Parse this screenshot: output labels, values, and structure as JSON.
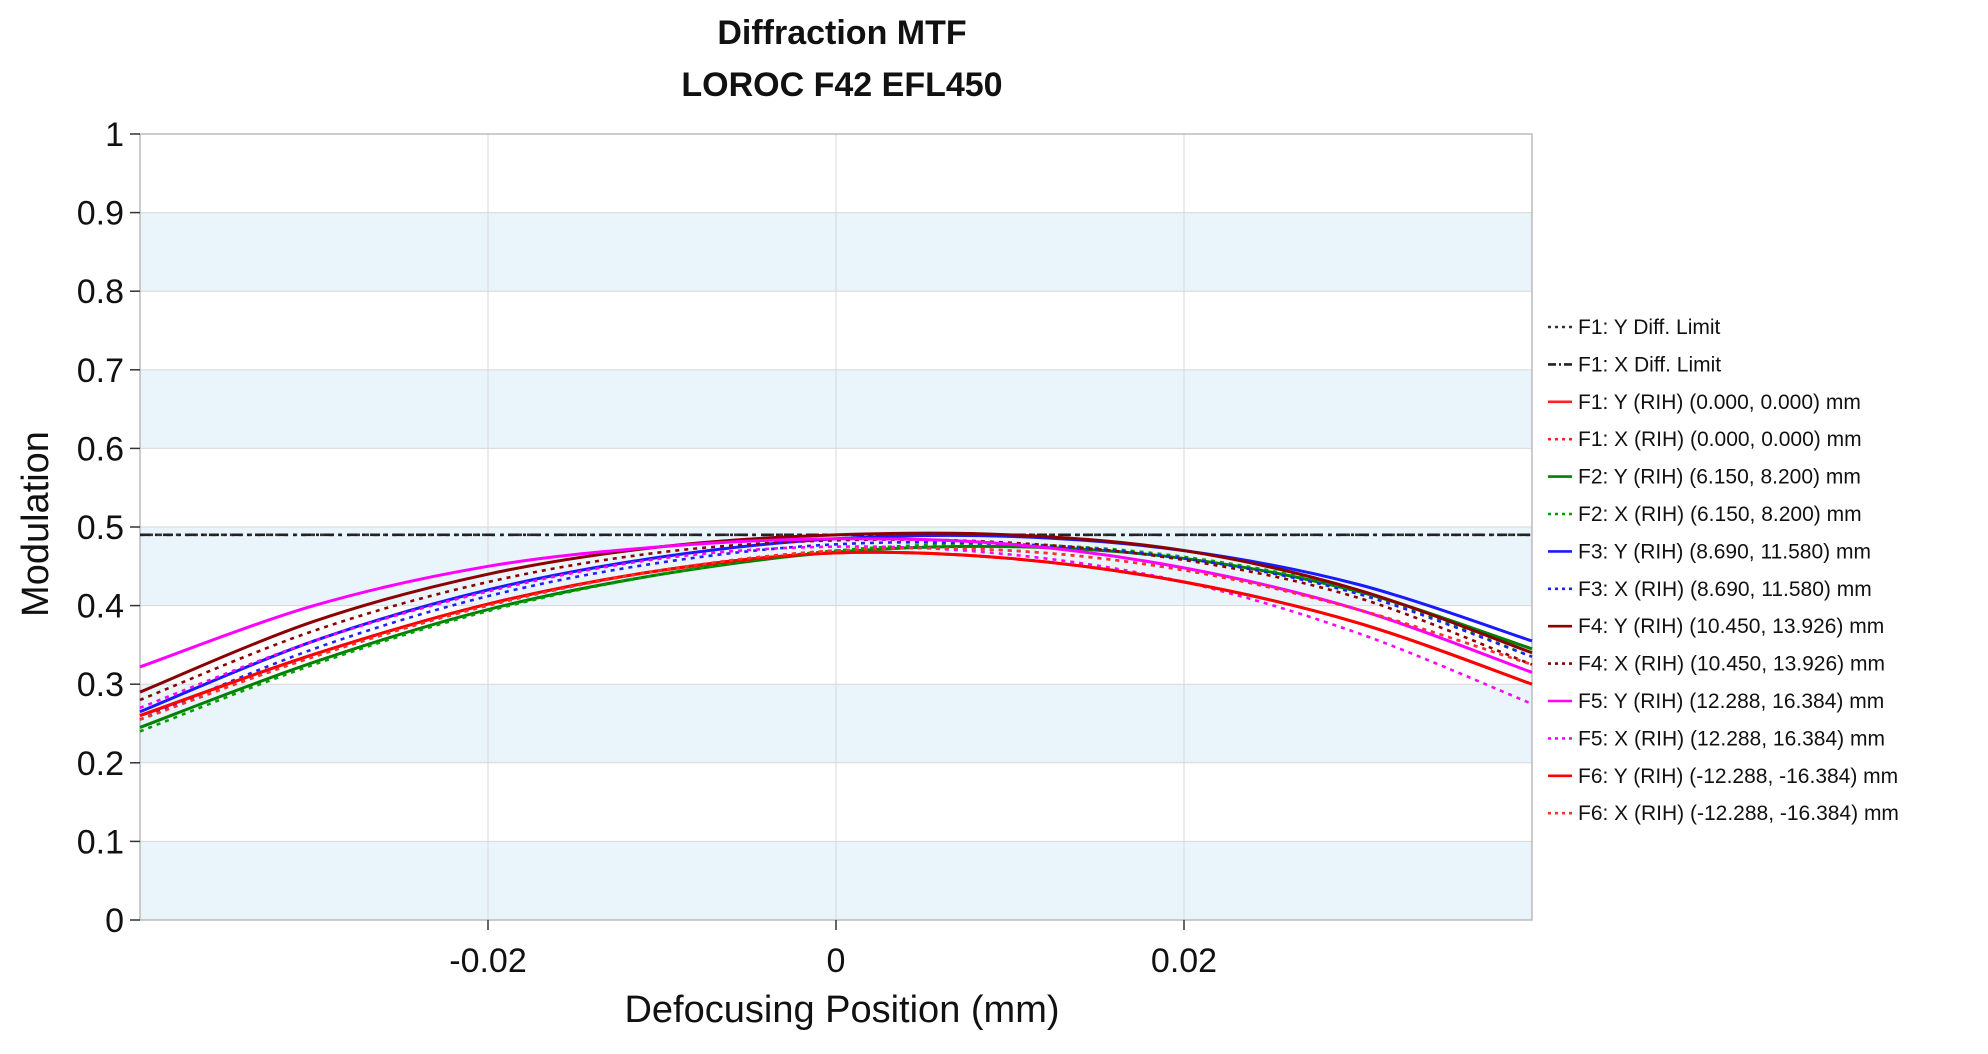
{
  "chart_data": {
    "type": "line",
    "title": "Diffraction MTF",
    "subtitle": "LOROC F42 EFL450",
    "xlabel": "Defocusing Position (mm)",
    "ylabel": "Modulation",
    "xlim": [
      -0.04,
      0.04
    ],
    "ylim": [
      0,
      1
    ],
    "xticks": [
      -0.02,
      0,
      0.02
    ],
    "xtick_labels": [
      "-0.02",
      "0",
      "0.02"
    ],
    "yticks": [
      0,
      0.1,
      0.2,
      0.3,
      0.4,
      0.5,
      0.6,
      0.7,
      0.8,
      0.9,
      1
    ],
    "ytick_labels": [
      "0",
      "0.1",
      "0.2",
      "0.3",
      "0.4",
      "0.5",
      "0.6",
      "0.7",
      "0.8",
      "0.9",
      "1"
    ],
    "grid": true,
    "band_color": "#eaf4fb",
    "grid_color": "#d8d8d8",
    "legend_position": "right",
    "x": [
      -0.04,
      -0.03,
      -0.02,
      -0.01,
      0,
      0.01,
      0.02,
      0.03,
      0.04
    ],
    "series": [
      {
        "name": "F1: Y Diff. Limit",
        "color": "#333333",
        "dash": "dots",
        "values": [
          0.49,
          0.49,
          0.49,
          0.49,
          0.49,
          0.49,
          0.49,
          0.49,
          0.49
        ]
      },
      {
        "name": "F1: X Diff. Limit",
        "color": "#222222",
        "dash": "dashdot",
        "values": [
          0.49,
          0.49,
          0.49,
          0.49,
          0.49,
          0.49,
          0.49,
          0.49,
          0.49
        ]
      },
      {
        "name": "F1: Y (RIH) (0.000, 0.000) mm",
        "color": "#ff2020",
        "dash": "solid",
        "values": [
          0.26,
          0.338,
          0.402,
          0.445,
          0.467,
          0.46,
          0.43,
          0.378,
          0.3
        ]
      },
      {
        "name": "F1: X (RIH) (0.000, 0.000) mm",
        "color": "#ff2020",
        "dash": "dots",
        "values": [
          0.255,
          0.335,
          0.4,
          0.445,
          0.47,
          0.47,
          0.445,
          0.395,
          0.325
        ]
      },
      {
        "name": "F2: Y (RIH) (6.150, 8.200) mm",
        "color": "#008000",
        "dash": "solid",
        "values": [
          0.245,
          0.328,
          0.395,
          0.44,
          0.468,
          0.475,
          0.46,
          0.418,
          0.345
        ]
      },
      {
        "name": "F2: X (RIH) (6.150, 8.200) mm",
        "color": "#00a000",
        "dash": "dots",
        "values": [
          0.24,
          0.325,
          0.393,
          0.44,
          0.47,
          0.478,
          0.462,
          0.418,
          0.335
        ]
      },
      {
        "name": "F3: Y (RIH) (8.690, 11.580) mm",
        "color": "#1a1aff",
        "dash": "solid",
        "values": [
          0.265,
          0.355,
          0.42,
          0.462,
          0.485,
          0.488,
          0.47,
          0.427,
          0.355
        ]
      },
      {
        "name": "F3: X (RIH) (8.690, 11.580) mm",
        "color": "#2020ff",
        "dash": "dots",
        "values": [
          0.255,
          0.345,
          0.412,
          0.455,
          0.478,
          0.478,
          0.46,
          0.415,
          0.335
        ]
      },
      {
        "name": "F4: Y (RIH) (10.450, 13.926) mm",
        "color": "#8b0000",
        "dash": "solid",
        "values": [
          0.29,
          0.38,
          0.44,
          0.475,
          0.49,
          0.49,
          0.47,
          0.42,
          0.34
        ]
      },
      {
        "name": "F4: X (RIH) (10.450, 13.926) mm",
        "color": "#8b0000",
        "dash": "dots",
        "values": [
          0.28,
          0.368,
          0.43,
          0.468,
          0.483,
          0.48,
          0.458,
          0.41,
          0.325
        ]
      },
      {
        "name": "F5: Y (RIH) (12.288, 16.384) mm",
        "color": "#ff00ff",
        "dash": "solid",
        "values": [
          0.322,
          0.4,
          0.45,
          0.475,
          0.485,
          0.478,
          0.448,
          0.395,
          0.315
        ]
      },
      {
        "name": "F5: X (RIH) (12.288, 16.384) mm",
        "color": "#ff00ff",
        "dash": "dots",
        "values": [
          0.27,
          0.355,
          0.418,
          0.46,
          0.475,
          0.465,
          0.43,
          0.365,
          0.275
        ]
      },
      {
        "name": "F6: Y (RIH) (-12.288, -16.384) mm",
        "color": "#ff0000",
        "dash": "solid",
        "values": [
          0.26,
          0.338,
          0.402,
          0.445,
          0.467,
          0.46,
          0.43,
          0.378,
          0.3
        ]
      },
      {
        "name": "F6: X (RIH) (-12.288, -16.384) mm",
        "color": "#ff3030",
        "dash": "dots",
        "values": [
          0.255,
          0.335,
          0.4,
          0.445,
          0.47,
          0.47,
          0.445,
          0.395,
          0.325
        ]
      }
    ]
  }
}
